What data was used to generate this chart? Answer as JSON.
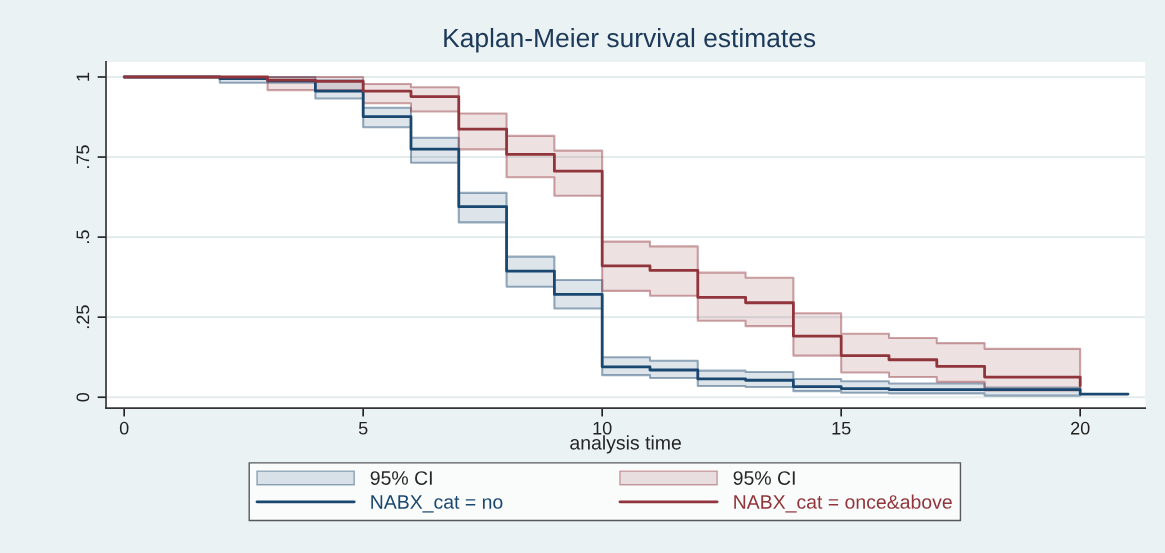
{
  "chart_data": {
    "type": "step",
    "title": "Kaplan-Meier survival estimates",
    "xlabel": "analysis time",
    "xlim": [
      -0.38,
      21.36
    ],
    "xticks": [
      0,
      5,
      10,
      15,
      20
    ],
    "ylim": [
      -0.034,
      1.047
    ],
    "yticks": [
      0,
      {
        "value": 0.25,
        "label": ".25"
      },
      {
        "value": 0.5,
        "label": ".5"
      },
      {
        "value": 0.75,
        "label": ".75"
      },
      1
    ],
    "grid": "y",
    "legend": "bottom",
    "annotations": [
      "95% CI",
      "95% CI"
    ],
    "series": [
      {
        "name": "NABX_cat = no",
        "color": "#1a476f",
        "x": [
          0,
          2,
          3,
          4,
          5,
          6,
          7,
          8,
          9,
          10,
          11,
          12,
          13,
          14,
          15,
          16,
          18,
          20,
          21
        ],
        "values": [
          1,
          0.995,
          0.988,
          0.956,
          0.876,
          0.775,
          0.595,
          0.394,
          0.321,
          0.095,
          0.085,
          0.057,
          0.053,
          0.033,
          0.027,
          0.024,
          0.024,
          0.01,
          0.01
        ],
        "upper": [
          1,
          1,
          1,
          0.99,
          0.904,
          0.81,
          0.638,
          0.439,
          0.366,
          0.125,
          0.114,
          0.083,
          0.079,
          0.057,
          0.05,
          0.043,
          0.03,
          0.03,
          null
        ],
        "lower": [
          1,
          0.982,
          0.982,
          0.933,
          0.843,
          0.732,
          0.546,
          0.345,
          0.277,
          0.069,
          0.06,
          0.035,
          0.032,
          0.019,
          0.014,
          0.012,
          0.005,
          0.005,
          null
        ]
      },
      {
        "name": "NABX_cat = once&above",
        "color": "#90353b",
        "x": [
          0,
          3,
          4,
          5,
          6,
          7,
          8,
          9,
          10,
          11,
          12,
          13,
          14,
          15,
          16,
          17,
          18,
          20
        ],
        "values": [
          1,
          0.99,
          0.986,
          0.956,
          0.939,
          0.837,
          0.758,
          0.706,
          0.41,
          0.396,
          0.312,
          0.295,
          0.191,
          0.13,
          0.117,
          0.096,
          0.063,
          0.036
        ],
        "upper": [
          1,
          1,
          1,
          0.978,
          0.968,
          0.886,
          0.816,
          0.77,
          0.486,
          0.471,
          0.389,
          0.373,
          0.262,
          0.198,
          0.185,
          0.169,
          0.151,
          0.151
        ],
        "lower": [
          1,
          0.959,
          0.959,
          0.918,
          0.892,
          0.774,
          0.687,
          0.629,
          0.332,
          0.317,
          0.239,
          0.222,
          0.13,
          0.077,
          0.063,
          0.048,
          0.021,
          0.021
        ]
      }
    ]
  }
}
